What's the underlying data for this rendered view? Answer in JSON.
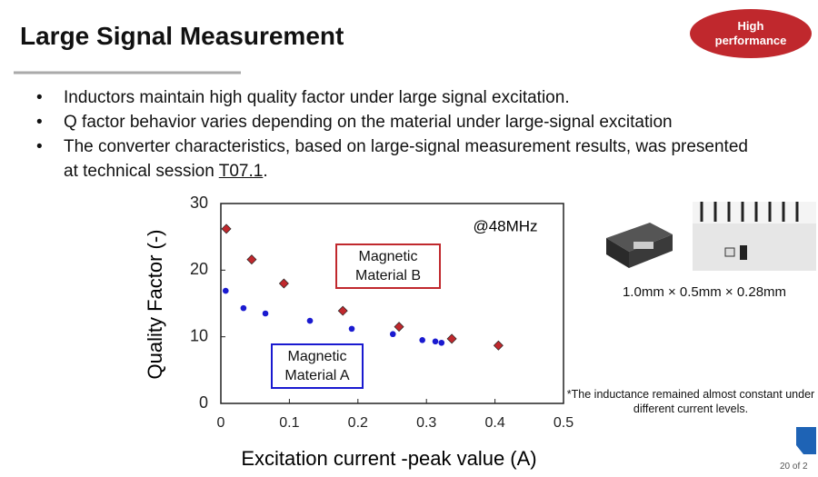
{
  "header": {
    "title": "Large Signal Measurement",
    "badge": "High performance"
  },
  "bullets": [
    {
      "text": "Inductors maintain high quality factor under large signal excitation."
    },
    {
      "text": "Q factor behavior varies depending on the material under large-signal excitation"
    },
    {
      "text": "The converter characteristics, based on large-signal measurement results, was presented at technical session ",
      "link": "T07.1",
      "tail": "."
    }
  ],
  "chart_data": {
    "type": "scatter",
    "annotation": "@48MHz",
    "xlabel": "Excitation current -peak value (A)",
    "ylabel": "Quality Factor (-)",
    "xlim": [
      0,
      0.5
    ],
    "ylim": [
      0,
      30
    ],
    "xticks": [
      0,
      0.1,
      0.2,
      0.3,
      0.4,
      0.5
    ],
    "yticks": [
      0,
      10,
      20,
      30
    ],
    "grid": false,
    "series": [
      {
        "name": "Magnetic Material B",
        "color": "#c0282d",
        "marker": "diamond",
        "x": [
          0.008,
          0.045,
          0.092,
          0.178,
          0.26,
          0.337,
          0.405
        ],
        "values": [
          26.2,
          21.6,
          18.0,
          13.9,
          11.5,
          9.7,
          8.7
        ]
      },
      {
        "name": "Magnetic Material A",
        "color": "#1a1ad0",
        "marker": "circle",
        "x": [
          0.007,
          0.033,
          0.065,
          0.13,
          0.191,
          0.251,
          0.294,
          0.313,
          0.322
        ],
        "values": [
          16.9,
          14.3,
          13.5,
          12.4,
          11.2,
          10.4,
          9.5,
          9.3,
          9.1
        ]
      }
    ]
  },
  "image_caption": "1.0mm × 0.5mm × 0.28mm",
  "footnote": "*The inductance remained almost constant under different current levels.",
  "page_number": "20 of 2"
}
